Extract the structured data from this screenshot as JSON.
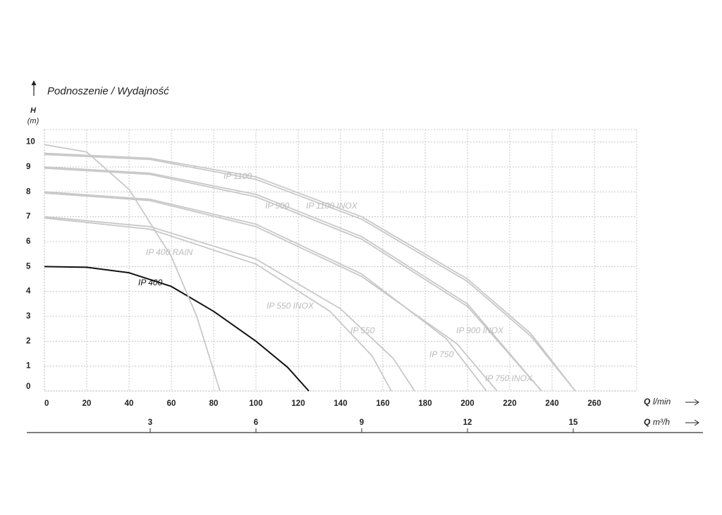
{
  "chart_data": {
    "type": "line",
    "title": "Podnoszenie / Wydajność",
    "y_label": {
      "symbol": "H",
      "unit": "(m)"
    },
    "x_label": {
      "symbol": "Q",
      "unit": "l/min"
    },
    "x2_label": {
      "symbol": "Q",
      "unit": "m³/h"
    },
    "xlim": [
      0,
      280
    ],
    "xticks": [
      0,
      20,
      40,
      60,
      80,
      100,
      120,
      140,
      160,
      180,
      200,
      220,
      240,
      260
    ],
    "x2lim": [
      0,
      16.8
    ],
    "x2ticks": [
      3,
      6,
      9,
      12,
      15
    ],
    "ylim": [
      0,
      10.5
    ],
    "yticks": [
      0,
      1,
      2,
      3,
      4,
      5,
      6,
      7,
      8,
      9,
      10
    ],
    "grid": true,
    "series": [
      {
        "name": "IP 400",
        "color": "#111111",
        "x": [
          0,
          20,
          40,
          60,
          80,
          100,
          115,
          125
        ],
        "values": [
          5,
          4.97,
          4.75,
          4.2,
          3.2,
          2.0,
          0.95,
          0
        ]
      },
      {
        "name": "IP 400 RAIN",
        "color": "#c8c8c8",
        "x": [
          0,
          20,
          40,
          60,
          72,
          83
        ],
        "values": [
          9.9,
          9.6,
          8.1,
          5.4,
          3,
          0
        ]
      },
      {
        "name": "IP 550 INOX",
        "color": "#c8c8c8",
        "x": [
          0,
          50,
          100,
          135,
          155,
          164
        ],
        "values": [
          6.95,
          6.5,
          5.1,
          3.2,
          1.4,
          0
        ]
      },
      {
        "name": "IP 550",
        "color": "#c8c8c8",
        "x": [
          0,
          50,
          100,
          140,
          165,
          175
        ],
        "values": [
          7.0,
          6.6,
          5.3,
          3.3,
          1.3,
          0
        ]
      },
      {
        "name": "IP 750",
        "color": "#c8c8c8",
        "x": [
          0,
          50,
          100,
          150,
          190,
          209
        ],
        "values": [
          8.0,
          7.7,
          6.7,
          4.7,
          2.1,
          0
        ]
      },
      {
        "name": "IP 750 INOX",
        "color": "#c8c8c8",
        "x": [
          0,
          50,
          100,
          150,
          195,
          214
        ],
        "values": [
          7.95,
          7.65,
          6.6,
          4.6,
          1.9,
          0
        ]
      },
      {
        "name": "IP 900",
        "color": "#c8c8c8",
        "x": [
          0,
          50,
          100,
          150,
          200,
          235
        ],
        "values": [
          9.0,
          8.75,
          7.9,
          6.2,
          3.5,
          0
        ]
      },
      {
        "name": "IP 900 INOX",
        "color": "#c8c8c8",
        "x": [
          0,
          50,
          100,
          150,
          200,
          235
        ],
        "values": [
          8.95,
          8.7,
          7.8,
          6.1,
          3.4,
          0
        ]
      },
      {
        "name": "IP 1100",
        "color": "#c8c8c8",
        "x": [
          0,
          50,
          100,
          150,
          200,
          230,
          251
        ],
        "values": [
          9.55,
          9.35,
          8.6,
          7.0,
          4.5,
          2.3,
          0
        ]
      },
      {
        "name": "IP 1100 INOX",
        "color": "#c8c8c8",
        "x": [
          0,
          50,
          100,
          150,
          200,
          230,
          251
        ],
        "values": [
          9.5,
          9.3,
          8.5,
          6.9,
          4.4,
          2.2,
          0
        ]
      }
    ]
  }
}
